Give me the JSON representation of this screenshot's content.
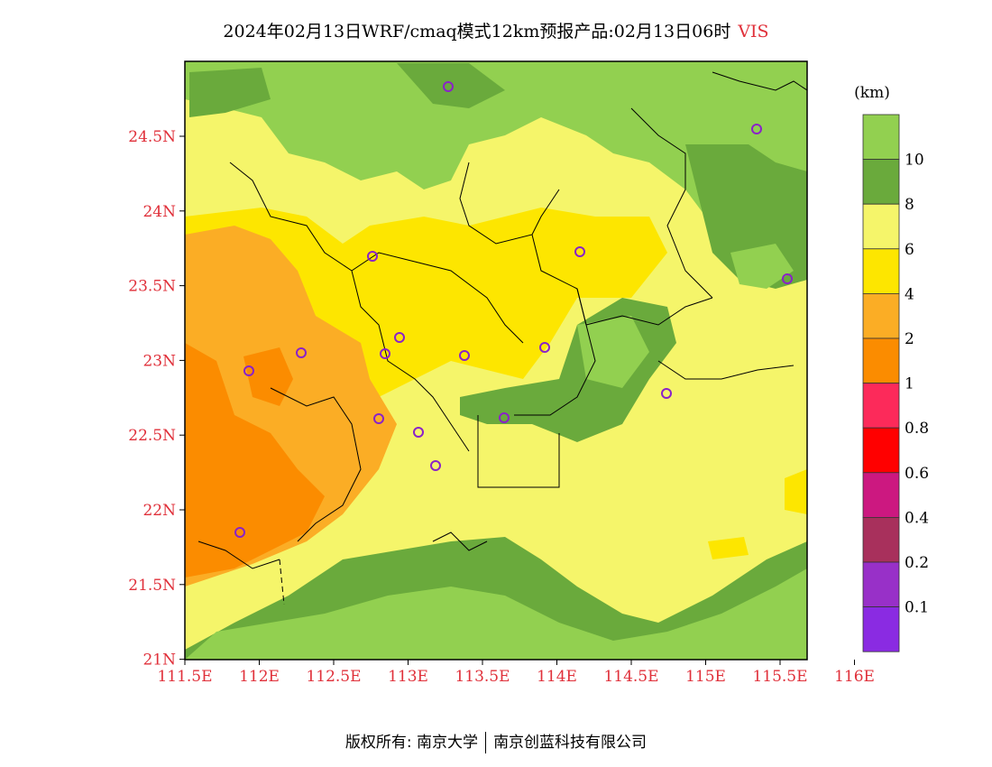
{
  "title": {
    "main": "2024年02月13日WRF/cmaq模式12km预报产品:02月13日06时",
    "variable": "VIS"
  },
  "map": {
    "lat_ticks": [
      "24.5N",
      "24N",
      "23.5N",
      "23N",
      "22.5N",
      "22N",
      "21.5N",
      "21N"
    ],
    "lon_ticks": [
      "111.5E",
      "112E",
      "112.5E",
      "113E",
      "113.5E",
      "114E",
      "114.5E",
      "115E",
      "115.5E",
      "116E"
    ],
    "tick_color": "#e0303a",
    "station_color": "#8a22c8"
  },
  "legend": {
    "unit": "(km)",
    "labels": [
      "10",
      "8",
      "6",
      "4",
      "2",
      "1",
      "0.8",
      "0.6",
      "0.4",
      "0.2",
      "0.1"
    ],
    "colors": [
      "#92d050",
      "#6aaa3c",
      "#f5f56a",
      "#fde600",
      "#fbad25",
      "#fb8c00",
      "#fc2a5a",
      "#ff0000",
      "#cc1880",
      "#a8305c",
      "#9830c8",
      "#8a2be2"
    ]
  },
  "footer": {
    "left": "版权所有: 南京大学",
    "right": "南京创蓝科技有限公司"
  }
}
